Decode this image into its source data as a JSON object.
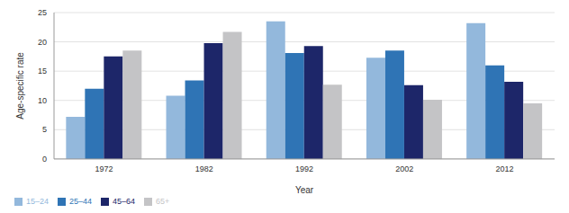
{
  "chart_data": {
    "type": "bar",
    "x_label": "Year",
    "y_label": "Age-specific rate",
    "categories": [
      "1972",
      "1982",
      "1992",
      "2002",
      "2012"
    ],
    "series": [
      {
        "name": "15–24",
        "color": "#93b8dc",
        "values": [
          7.2,
          10.8,
          23.5,
          17.3,
          23.2
        ]
      },
      {
        "name": "25–44",
        "color": "#2f74b5",
        "values": [
          12,
          13.4,
          18.1,
          18.5,
          16
        ]
      },
      {
        "name": "45–64",
        "color": "#1d2669",
        "values": [
          17.5,
          19.8,
          19.3,
          12.6,
          13.2
        ]
      },
      {
        "name": "65+",
        "color": "#c4c4c6",
        "values": [
          18.5,
          21.7,
          12.7,
          10.1,
          9.5
        ]
      }
    ],
    "ylim": [
      0,
      25
    ],
    "yticks": [
      0,
      5,
      10,
      15,
      20,
      25
    ],
    "grid": true,
    "legend": "bottom left"
  }
}
